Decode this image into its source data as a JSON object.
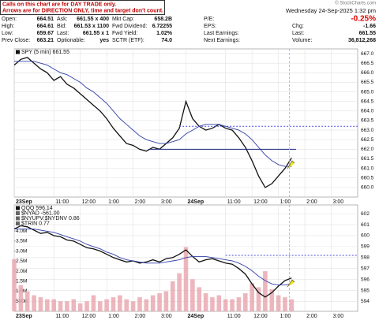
{
  "header": {
    "note": [
      "Calls on this chart are for DAY TRADE only.",
      "Arrows are for DIRECTION ONLY, time and target don't count."
    ],
    "date": "Wednesday 24-Sep-2025 1:32 pm",
    "watermark": "© StockCharts.com",
    "columns": [
      [
        {
          "label": "Open:",
          "value": "664.51"
        },
        {
          "label": "High:",
          "value": "664.61"
        },
        {
          "label": "Low:",
          "value": "659.67"
        },
        {
          "label": "Prev Close:",
          "value": "663.21"
        }
      ],
      [
        {
          "label": "Ask:",
          "value": "661.55 x 400"
        },
        {
          "label": "Bid:",
          "value": "661.53 x 1100"
        },
        {
          "label": "Last:",
          "value": "661.55 x 1"
        },
        {
          "label": "Optionable:",
          "value": "yes"
        }
      ],
      [
        {
          "label": "Mkt Cap:",
          "value": "658.2B"
        },
        {
          "label": "Fwd Dividend:",
          "value": "6.72255"
        },
        {
          "label": "Fwd Yield:",
          "value": "1.02%"
        },
        {
          "label": "SCTR (ETF):",
          "value": "74.0"
        }
      ]
    ],
    "right_labels": [
      "P/E:",
      "EPS:",
      "Last Earnings:",
      "Next Earnings:"
    ],
    "change_pct": "-0.25%",
    "right_stats": [
      {
        "label": "Chg:",
        "value": "-1.66"
      },
      {
        "label": "Last:",
        "value": "661.55"
      },
      {
        "label": "Volume:",
        "value": "36,812,268"
      }
    ]
  },
  "chart_data": [
    {
      "type": "line",
      "grid": true,
      "x": [
        0,
        3,
        6,
        9,
        12,
        15,
        18,
        21,
        24,
        27,
        30,
        33,
        36,
        39,
        42,
        45,
        48,
        51,
        54,
        57,
        60,
        63,
        66,
        69,
        72,
        75,
        78,
        81,
        84,
        87,
        90,
        93,
        96,
        99,
        102,
        105,
        108,
        111,
        114,
        117,
        120,
        123,
        126
      ],
      "series": [
        {
          "name": "SPY (5 min) 661.55",
          "color": "#111111",
          "values": [
            666.4,
            666.7,
            666.8,
            666.5,
            666.2,
            666.0,
            665.6,
            665.8,
            665.4,
            665.2,
            664.9,
            664.6,
            664.3,
            664.0,
            663.6,
            663.1,
            662.7,
            662.3,
            662.2,
            662.0,
            661.9,
            662.1,
            662.0,
            662.3,
            662.6,
            663.1,
            664.5,
            663.6,
            663.2,
            663.0,
            663.1,
            663.3,
            663.1,
            663.0,
            662.6,
            662.1,
            661.4,
            660.6,
            660.0,
            660.2,
            660.6,
            661.0,
            661.55
          ]
        },
        {
          "color": "#3340a8",
          "values": [
            666.6,
            666.6,
            666.6,
            666.6,
            666.5,
            666.4,
            666.2,
            666.0,
            665.9,
            665.7,
            665.5,
            665.2,
            665.0,
            664.7,
            664.4,
            664.0,
            663.6,
            663.3,
            663.0,
            662.7,
            662.5,
            662.4,
            662.3,
            662.3,
            662.4,
            662.5,
            662.8,
            663.0,
            663.2,
            663.3,
            663.3,
            663.3,
            663.2,
            663.1,
            663.0,
            662.8,
            662.5,
            662.1,
            661.7,
            661.4,
            661.2,
            661.1,
            661.1
          ]
        }
      ],
      "hlines": [
        {
          "value": 663.2,
          "color": "#4a4ae0",
          "dashed": true,
          "from": 75
        },
        {
          "value": 662.0,
          "color": "#1a237e",
          "from": 61
        }
      ],
      "now": 125,
      "xlim": [
        0,
        156
      ],
      "xticks": [
        {
          "value": 0,
          "label": "23Sep"
        },
        {
          "value": 18,
          "label": "11:00"
        },
        {
          "value": 30,
          "label": "12:00"
        },
        {
          "value": 42,
          "label": "1:00"
        },
        {
          "value": 54,
          "label": "2:00"
        },
        {
          "value": 66,
          "label": "3:00"
        },
        {
          "value": 78,
          "label": "24Sep"
        },
        {
          "value": 96,
          "label": "11:00"
        },
        {
          "value": 108,
          "label": "12:00"
        },
        {
          "value": 120,
          "label": "1:00"
        },
        {
          "value": 132,
          "label": "2:00"
        },
        {
          "value": 144,
          "label": "3:00"
        }
      ],
      "ylim": [
        659.5,
        667.25
      ],
      "yticks": [
        {
          "value": 660,
          "label": "660.0"
        },
        {
          "value": 660.5,
          "label": "660.5"
        },
        {
          "value": 661,
          "label": "661.0"
        },
        {
          "value": 661.5,
          "label": "661.5"
        },
        {
          "value": 662,
          "label": "662.0"
        },
        {
          "value": 662.5,
          "label": "662.5"
        },
        {
          "value": 663,
          "label": "663.0"
        },
        {
          "value": 663.5,
          "label": "663.5"
        },
        {
          "value": 664,
          "label": "664.0"
        },
        {
          "value": 664.5,
          "label": "664.5"
        },
        {
          "value": 665,
          "label": "665.0"
        },
        {
          "value": 665.5,
          "label": "665.5"
        },
        {
          "value": 666,
          "label": "666.0"
        },
        {
          "value": 666.5,
          "label": "666.5"
        },
        {
          "value": 667,
          "label": "667.0"
        }
      ]
    },
    {
      "type": "line",
      "grid": true,
      "x": [
        0,
        3,
        6,
        9,
        12,
        15,
        18,
        21,
        24,
        27,
        30,
        33,
        36,
        39,
        42,
        45,
        48,
        51,
        54,
        57,
        60,
        63,
        66,
        69,
        72,
        75,
        78,
        81,
        84,
        87,
        90,
        93,
        96,
        99,
        102,
        105,
        108,
        111,
        114,
        117,
        120,
        123,
        126
      ],
      "series": [
        {
          "name": "QQQ 596.14",
          "color": "#111111",
          "values": [
            600.6,
            600.9,
            600.8,
            600.5,
            600.2,
            600.3,
            600.0,
            599.9,
            599.6,
            599.5,
            599.2,
            598.9,
            598.8,
            598.6,
            598.3,
            598.0,
            597.8,
            597.6,
            597.7,
            597.5,
            597.6,
            597.8,
            597.6,
            597.9,
            598.0,
            598.3,
            598.7,
            598.1,
            597.6,
            597.8,
            597.9,
            597.7,
            597.5,
            597.4,
            597.0,
            596.5,
            595.6,
            594.8,
            594.4,
            594.8,
            595.4,
            595.9,
            596.14
          ]
        },
        {
          "color": "#3340a8",
          "values": [
            600.6,
            600.6,
            600.6,
            600.6,
            600.5,
            600.4,
            600.3,
            600.1,
            599.9,
            599.7,
            599.5,
            599.2,
            599.0,
            598.8,
            598.5,
            598.3,
            598.0,
            597.8,
            597.7,
            597.6,
            597.5,
            597.5,
            597.5,
            597.6,
            597.7,
            597.8,
            598.0,
            598.1,
            598.1,
            598.1,
            598.0,
            597.9,
            597.8,
            597.7,
            597.5,
            597.2,
            596.8,
            596.3,
            595.9,
            595.6,
            595.5,
            595.5,
            595.6
          ]
        },
        {
          "type": "bar",
          "axis": "y2",
          "color": "#e8a4ad",
          "values": [
            2600000,
            1300000,
            1000000,
            800000,
            700000,
            600000,
            600000,
            500000,
            500000,
            600000,
            400000,
            500000,
            800000,
            500000,
            600000,
            700000,
            800000,
            600000,
            500000,
            700000,
            600000,
            800000,
            900000,
            1000000,
            1500000,
            1900000,
            3200000,
            1600000,
            1200000,
            900000,
            700000,
            800000,
            600000,
            600000,
            700000,
            900000,
            1400000,
            1200000,
            2000000,
            1100000,
            800000,
            700000,
            600000
          ]
        }
      ],
      "legend_extra": [
        "$NYAD -561.00",
        "$NYUPV:$NYDNV 0.86",
        "$TRIN 0.77"
      ],
      "hlines": [
        {
          "value": 598.2,
          "color": "#4a4ae0",
          "dashed": true,
          "from": 96
        }
      ],
      "now": 125,
      "xlim": [
        0,
        156
      ],
      "xticks": [
        {
          "value": 0,
          "label": "23Sep"
        },
        {
          "value": 18,
          "label": "11:00"
        },
        {
          "value": 30,
          "label": "12:00"
        },
        {
          "value": 42,
          "label": "1:00"
        },
        {
          "value": 54,
          "label": "2:00"
        },
        {
          "value": 66,
          "label": "3:00"
        },
        {
          "value": 78,
          "label": "24Sep"
        },
        {
          "value": 96,
          "label": "11:00"
        },
        {
          "value": 108,
          "label": "12:00"
        },
        {
          "value": 120,
          "label": "1:00"
        },
        {
          "value": 132,
          "label": "2:00"
        },
        {
          "value": 144,
          "label": "3:00"
        }
      ],
      "ylim": [
        593.1,
        602.8
      ],
      "yticks": [
        594,
        595,
        596,
        597,
        598,
        599,
        600,
        601,
        602
      ],
      "y2lim": [
        0,
        5300000
      ],
      "y2ticks": [
        {
          "value": 500000,
          "label": "500K"
        },
        {
          "value": 1000000,
          "label": "1.0M"
        },
        {
          "value": 1500000,
          "label": "1.5M"
        },
        {
          "value": 2000000,
          "label": "2.0M"
        },
        {
          "value": 2500000,
          "label": "2.5M"
        },
        {
          "value": 3000000,
          "label": "3.0M"
        },
        {
          "value": 3500000,
          "label": "3.5M"
        },
        {
          "value": 4000000,
          "label": "4.0M"
        }
      ]
    }
  ]
}
